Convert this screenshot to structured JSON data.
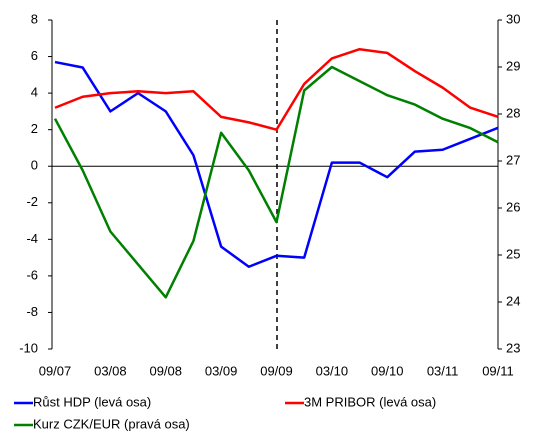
{
  "chart_data": {
    "type": "line",
    "categories": [
      "09/07",
      null,
      "03/08",
      null,
      "09/08",
      null,
      "03/09",
      null,
      "09/09",
      null,
      "03/10",
      null,
      "09/10",
      null,
      "03/11",
      null,
      "09/11"
    ],
    "series": [
      {
        "name": "Růst HDP (levá osa)",
        "color": "#0000ff",
        "values": [
          5.7,
          5.4,
          3.0,
          4.0,
          3.0,
          0.6,
          -4.4,
          -5.5,
          -4.9,
          -5.0,
          0.2,
          0.2,
          -0.6,
          0.8,
          0.9,
          1.5,
          2.1
        ]
      },
      {
        "name": "3M PRIBOR (levá osa)",
        "color": "#ff0000",
        "values": [
          3.2,
          3.8,
          4.0,
          4.1,
          4.0,
          4.1,
          2.7,
          2.4,
          2.0,
          4.5,
          5.9,
          6.4,
          6.2,
          5.2,
          4.3,
          3.2,
          2.7
        ]
      },
      {
        "name": "Kurz CZK/EUR (pravá osa)",
        "color": "#008000",
        "axis": "y2",
        "values": [
          27.9,
          26.8,
          25.5,
          24.8,
          24.1,
          25.3,
          27.6,
          26.8,
          25.7,
          28.5,
          29.0,
          28.7,
          28.4,
          28.2,
          27.9,
          27.7,
          27.4
        ]
      }
    ],
    "ylim": [
      -10,
      8
    ],
    "yticks": [
      -10,
      -8,
      -6,
      -4,
      -2,
      0,
      2,
      4,
      6,
      8
    ],
    "y2lim": [
      23,
      30
    ],
    "y2ticks": [
      23,
      24,
      25,
      26,
      27,
      28,
      29,
      30
    ]
  }
}
